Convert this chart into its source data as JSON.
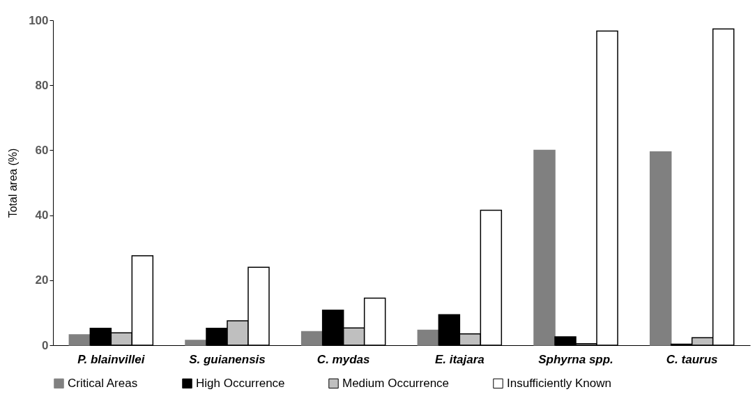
{
  "chart_data": {
    "type": "bar",
    "ylabel": "Total area  (%)",
    "categories": [
      "P. blainvillei",
      "S. guianensis",
      "C. mydas",
      "E. itajara",
      "Sphyrna spp.",
      "C. taurus"
    ],
    "series": [
      {
        "name": "Critical Areas",
        "color": "#808080",
        "values": [
          3.2,
          1.5,
          4.2,
          4.6,
          60,
          59.5
        ]
      },
      {
        "name": "High Occurrence",
        "color": "#000000",
        "values": [
          5.2,
          5.2,
          10.8,
          9.4,
          2.6,
          0.3
        ]
      },
      {
        "name": "Medium Occurrence",
        "color": "#bfbfbf",
        "values": [
          3.8,
          7.5,
          5.3,
          3.5,
          0.5,
          2.3
        ]
      },
      {
        "name": "Insufficiently Known",
        "color": "#ffffff",
        "values": [
          27.5,
          24,
          14.5,
          41.5,
          96.7,
          97.3
        ]
      }
    ],
    "ylim": [
      0,
      100
    ],
    "yticks": [
      0,
      20,
      40,
      60,
      80,
      100
    ],
    "grid": false,
    "legend": "bottom"
  }
}
